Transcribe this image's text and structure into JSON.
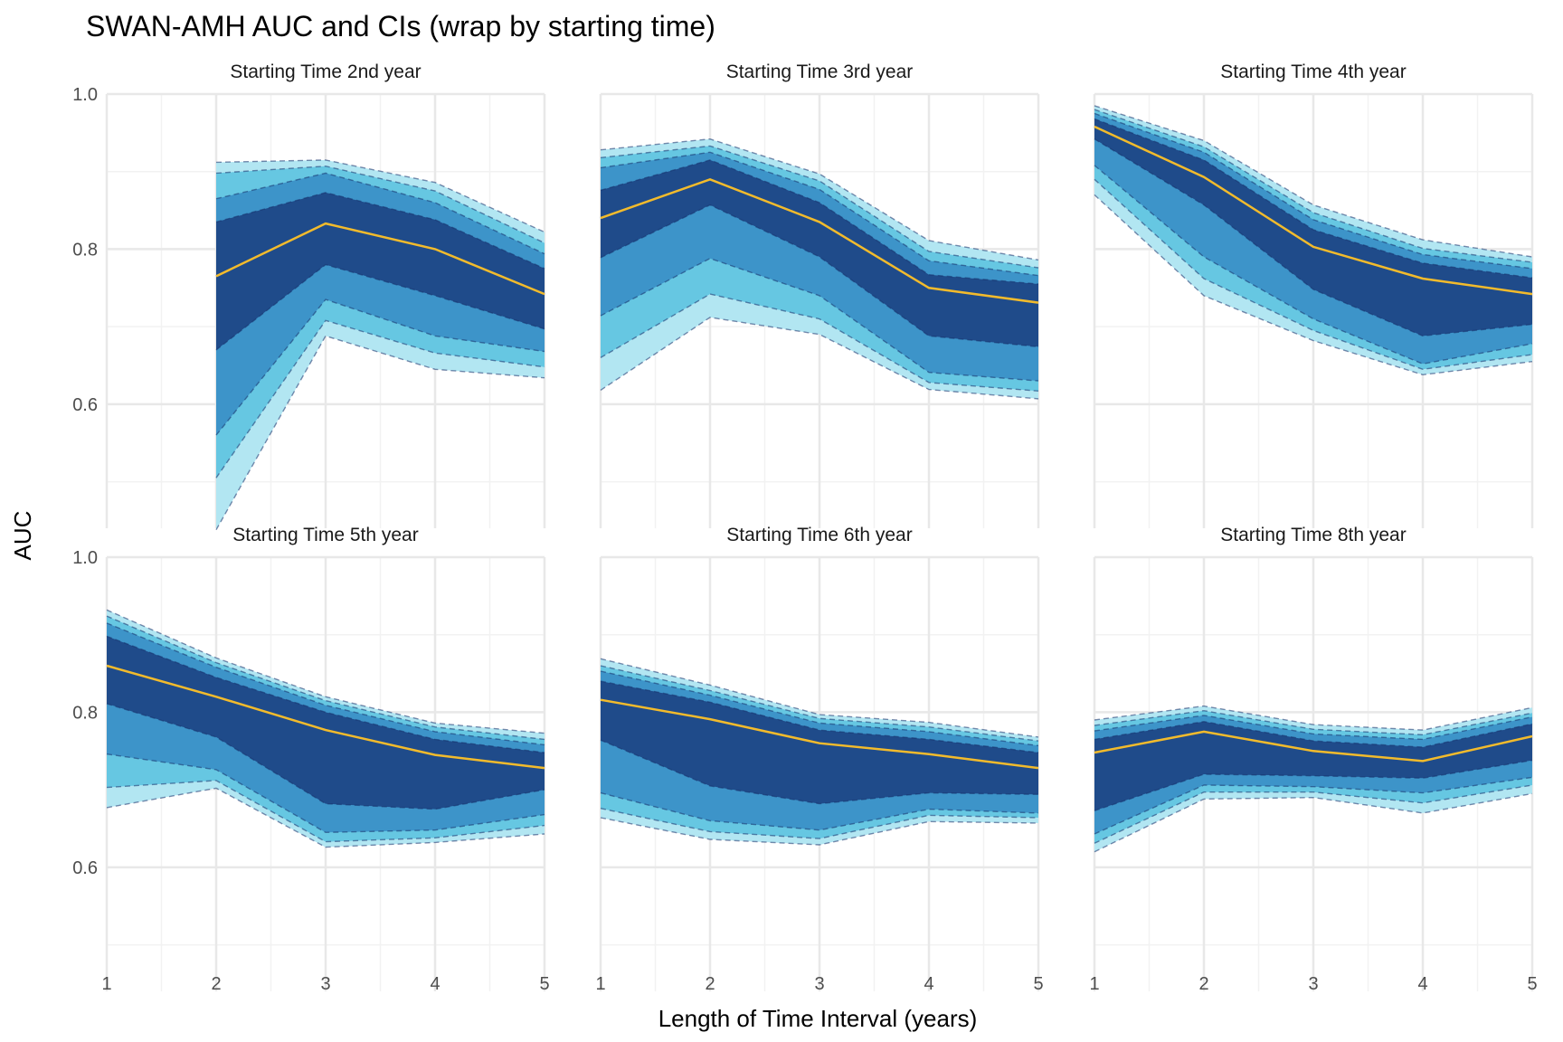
{
  "title": "SWAN-AMH AUC and CIs (wrap by starting time)",
  "colors": {
    "band_99": "#b2e6f2",
    "band_95": "#66c7e2",
    "band_90": "#3d94c9",
    "band_80": "#1f4b8a",
    "band_edge": "#16306a",
    "estimate_line": "#f2bb2c",
    "grid_major": "#e8e8e8",
    "grid_minor": "#f2f2f2"
  },
  "chart_data": {
    "type": "area",
    "facet_by": "starting time",
    "layout": {
      "rows": 2,
      "cols": 3
    },
    "xlabel": "Length of Time Interval (years)",
    "ylabel": "AUC",
    "x_ticks": [
      1,
      2,
      3,
      4,
      5
    ],
    "y_ticks": [
      0.6,
      0.8,
      1.0
    ],
    "y_tick_labels": [
      "0.6",
      "0.8",
      "1.0"
    ],
    "xlim": [
      1,
      5
    ],
    "ylim": [
      0.44,
      1.0
    ],
    "grid": true,
    "legend": "none",
    "bands": [
      "band_99",
      "band_95",
      "band_90",
      "band_80"
    ],
    "panels": [
      {
        "label": "Starting Time 2nd year",
        "x": [
          2,
          3,
          4,
          5
        ],
        "auc": [
          0.765,
          0.833,
          0.8,
          0.742
        ],
        "band_80": [
          [
            0.67,
            0.835
          ],
          [
            0.78,
            0.873
          ],
          [
            0.74,
            0.838
          ],
          [
            0.697,
            0.775
          ]
        ],
        "band_90": [
          [
            0.56,
            0.865
          ],
          [
            0.735,
            0.898
          ],
          [
            0.688,
            0.86
          ],
          [
            0.668,
            0.794
          ]
        ],
        "band_95": [
          [
            0.505,
            0.898
          ],
          [
            0.708,
            0.907
          ],
          [
            0.666,
            0.875
          ],
          [
            0.648,
            0.808
          ]
        ],
        "band_99": [
          [
            0.438,
            0.912
          ],
          [
            0.688,
            0.915
          ],
          [
            0.645,
            0.886
          ],
          [
            0.634,
            0.822
          ]
        ]
      },
      {
        "label": "Starting Time 3rd year",
        "x": [
          1,
          2,
          3,
          4,
          5
        ],
        "auc": [
          0.84,
          0.89,
          0.835,
          0.75,
          0.731
        ],
        "band_80": [
          [
            0.789,
            0.876
          ],
          [
            0.857,
            0.915
          ],
          [
            0.79,
            0.86
          ],
          [
            0.688,
            0.767
          ],
          [
            0.674,
            0.755
          ]
        ],
        "band_90": [
          [
            0.714,
            0.905
          ],
          [
            0.788,
            0.925
          ],
          [
            0.74,
            0.877
          ],
          [
            0.641,
            0.785
          ],
          [
            0.63,
            0.766
          ]
        ],
        "band_95": [
          [
            0.66,
            0.918
          ],
          [
            0.742,
            0.933
          ],
          [
            0.71,
            0.888
          ],
          [
            0.628,
            0.797
          ],
          [
            0.617,
            0.776
          ]
        ],
        "band_99": [
          [
            0.618,
            0.928
          ],
          [
            0.712,
            0.942
          ],
          [
            0.69,
            0.897
          ],
          [
            0.619,
            0.811
          ],
          [
            0.607,
            0.786
          ]
        ]
      },
      {
        "label": "Starting Time 4th year",
        "x": [
          1,
          2,
          3,
          4,
          5
        ],
        "auc": [
          0.958,
          0.893,
          0.803,
          0.762,
          0.742
        ],
        "band_80": [
          [
            0.942,
            0.968
          ],
          [
            0.857,
            0.915
          ],
          [
            0.748,
            0.825
          ],
          [
            0.688,
            0.782
          ],
          [
            0.703,
            0.763
          ]
        ],
        "band_90": [
          [
            0.908,
            0.975
          ],
          [
            0.79,
            0.925
          ],
          [
            0.71,
            0.838
          ],
          [
            0.652,
            0.793
          ],
          [
            0.678,
            0.775
          ]
        ],
        "band_95": [
          [
            0.89,
            0.98
          ],
          [
            0.762,
            0.932
          ],
          [
            0.695,
            0.847
          ],
          [
            0.645,
            0.801
          ],
          [
            0.664,
            0.783
          ]
        ],
        "band_99": [
          [
            0.87,
            0.985
          ],
          [
            0.74,
            0.94
          ],
          [
            0.682,
            0.857
          ],
          [
            0.638,
            0.812
          ],
          [
            0.655,
            0.79
          ]
        ]
      },
      {
        "label": "Starting Time 5th year",
        "x": [
          1,
          2,
          3,
          4,
          5
        ],
        "auc": [
          0.86,
          0.82,
          0.777,
          0.745,
          0.728
        ],
        "band_80": [
          [
            0.811,
            0.898
          ],
          [
            0.768,
            0.845
          ],
          [
            0.682,
            0.8
          ],
          [
            0.675,
            0.765
          ],
          [
            0.7,
            0.748
          ]
        ],
        "band_90": [
          [
            0.746,
            0.915
          ],
          [
            0.726,
            0.858
          ],
          [
            0.645,
            0.809
          ],
          [
            0.648,
            0.775
          ],
          [
            0.668,
            0.758
          ]
        ],
        "band_95": [
          [
            0.703,
            0.924
          ],
          [
            0.712,
            0.864
          ],
          [
            0.633,
            0.815
          ],
          [
            0.638,
            0.781
          ],
          [
            0.654,
            0.765
          ]
        ],
        "band_99": [
          [
            0.677,
            0.932
          ],
          [
            0.702,
            0.87
          ],
          [
            0.626,
            0.82
          ],
          [
            0.632,
            0.786
          ],
          [
            0.643,
            0.773
          ]
        ]
      },
      {
        "label": "Starting Time 6th year",
        "x": [
          1,
          2,
          3,
          4,
          5
        ],
        "auc": [
          0.816,
          0.791,
          0.76,
          0.746,
          0.728
        ],
        "band_80": [
          [
            0.764,
            0.84
          ],
          [
            0.705,
            0.813
          ],
          [
            0.682,
            0.777
          ],
          [
            0.696,
            0.765
          ],
          [
            0.694,
            0.748
          ]
        ],
        "band_90": [
          [
            0.696,
            0.853
          ],
          [
            0.66,
            0.822
          ],
          [
            0.648,
            0.786
          ],
          [
            0.675,
            0.775
          ],
          [
            0.67,
            0.757
          ]
        ],
        "band_95": [
          [
            0.676,
            0.86
          ],
          [
            0.646,
            0.828
          ],
          [
            0.637,
            0.792
          ],
          [
            0.667,
            0.781
          ],
          [
            0.664,
            0.763
          ]
        ],
        "band_99": [
          [
            0.664,
            0.869
          ],
          [
            0.636,
            0.835
          ],
          [
            0.629,
            0.797
          ],
          [
            0.659,
            0.787
          ],
          [
            0.657,
            0.768
          ]
        ]
      },
      {
        "label": "Starting Time 8th year",
        "x": [
          1,
          2,
          3,
          4,
          5
        ],
        "auc": [
          0.748,
          0.775,
          0.75,
          0.737,
          0.769
        ],
        "band_80": [
          [
            0.673,
            0.765
          ],
          [
            0.72,
            0.788
          ],
          [
            0.718,
            0.763
          ],
          [
            0.715,
            0.755
          ],
          [
            0.738,
            0.785
          ]
        ],
        "band_90": [
          [
            0.643,
            0.776
          ],
          [
            0.706,
            0.796
          ],
          [
            0.704,
            0.772
          ],
          [
            0.696,
            0.765
          ],
          [
            0.716,
            0.794
          ]
        ],
        "band_95": [
          [
            0.631,
            0.783
          ],
          [
            0.697,
            0.802
          ],
          [
            0.697,
            0.778
          ],
          [
            0.683,
            0.771
          ],
          [
            0.706,
            0.799
          ]
        ],
        "band_99": [
          [
            0.62,
            0.79
          ],
          [
            0.688,
            0.808
          ],
          [
            0.69,
            0.784
          ],
          [
            0.67,
            0.777
          ],
          [
            0.695,
            0.806
          ]
        ]
      }
    ]
  }
}
